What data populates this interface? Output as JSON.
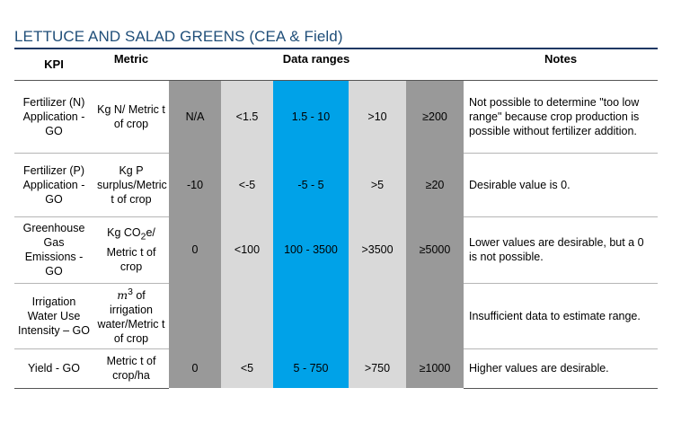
{
  "title": "LETTUCE AND SALAD GREENS (CEA & Field)",
  "headers": {
    "kpi": "KPI",
    "metric": "Metric",
    "ranges": "Data ranges",
    "notes": "Notes"
  },
  "rows": [
    {
      "kpi": "Fertilizer (N) Application - GO",
      "metric": "Kg N/ Metric t of crop",
      "ranges": [
        "N/A",
        "<1.5",
        "1.5 - 10",
        ">10",
        "≥200"
      ],
      "notes": "Not possible to determine \"too low range\" because crop production is possible without fertilizer addition."
    },
    {
      "kpi": "Fertilizer (P) Application - GO",
      "metric": "Kg P surplus/Metric t of crop",
      "ranges": [
        "-10",
        "<-5",
        "-5 - 5",
        ">5",
        "≥20"
      ],
      "notes": "Desirable value is 0."
    },
    {
      "kpi": "Greenhouse Gas Emissions - GO",
      "metric_pre": "Kg CO",
      "metric_sub": "2",
      "metric_post": "e/ Metric t of crop",
      "ranges": [
        "0",
        "<100",
        "100 - 3500",
        ">3500",
        "≥5000"
      ],
      "notes": "Lower values are desirable, but a 0 is not possible."
    },
    {
      "kpi": "Irrigation Water Use Intensity – GO",
      "metric_var": "m",
      "metric_sup": "3",
      "metric_post": " of irrigation water/Metric t of crop",
      "ranges": [
        "",
        "",
        "",
        "",
        ""
      ],
      "notes": "Insufficient data to estimate range."
    },
    {
      "kpi": "Yield - GO",
      "metric": "Metric t of crop/ha",
      "ranges": [
        "0",
        "<5",
        "5 - 750",
        ">750",
        "≥1000"
      ],
      "notes": "Higher values are desirable."
    }
  ]
}
